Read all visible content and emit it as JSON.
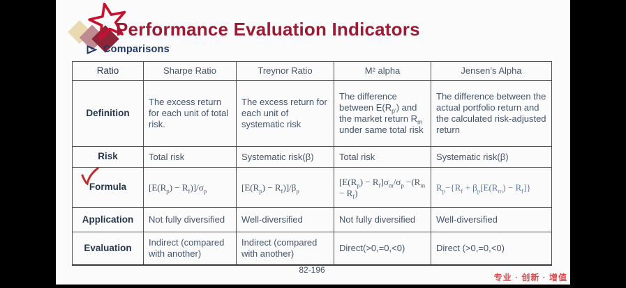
{
  "slide": {
    "title": "Performance Evaluation Indicators",
    "section_heading": "Comparisons",
    "page_number": "82-196",
    "footer_slogan": "专业 · 创新 · 增值",
    "colors": {
      "title_maroon": "#9a1b33",
      "heading_navy": "#1f3864",
      "table_text": "#44546a",
      "formula_text": "#3d4d66",
      "jensen_formula_blue": "#5d7ca6",
      "star_red": "#c8102e",
      "checkmark_red": "#c32b2b",
      "slogan_red": "#e2474b",
      "diamond_tan": "#e9dab2",
      "diamond_pink": "#c08a92",
      "diamond_maroon": "#8e2438",
      "letterbox_black": "#000000",
      "slide_background": "#fbfbfb"
    },
    "icons": {
      "star_logo": "star-outline",
      "bullet": "right-arrowhead",
      "annotation": "red-checkmark"
    }
  },
  "table": {
    "headers": [
      "Ratio",
      "Sharpe Ratio",
      "Treynor Ratio",
      "M² alpha",
      "Jensen’s Alpha"
    ],
    "rows": [
      {
        "label": "Definition",
        "cells": [
          "The excess return for each unit of total risk.",
          "The excess return for each unit of systematic risk",
          "The difference between E(R<sub>p′</sub>) and the market return R<sub>m</sub> under same total risk",
          "The difference between the actual portfolio return and the calculated risk-adjusted return"
        ]
      },
      {
        "label": "Risk",
        "cells": [
          "Total risk",
          "Systematic risk(β)",
          "Total risk",
          "Systematic risk(β)"
        ]
      },
      {
        "label": "Formula",
        "cells": [
          "[E(R<sub>p</sub>) − R<sub>f</sub>)]/σ<sub>p</sub>",
          "[E(R<sub>p</sub>) − R<sub>f</sub>)]/β<sub>p</sub>",
          "[E(R<sub>p</sub>) − R<sub>f</sub>]σ<sub>m</sub>/σ<sub>p</sub> −(R<sub>m</sub> − R<sub>f</sub>)",
          "R<sub>p</sub>−{R<sub>f</sub> + β<sub>p</sub>[E(R<sub>m</sub>) − R<sub>f</sub>]}"
        ]
      },
      {
        "label": "Application",
        "cells": [
          "Not fully diversified",
          "Well-diversified",
          "Not fully diversified",
          "Well-diversified"
        ]
      },
      {
        "label": "Evaluation",
        "cells": [
          "Indirect (compared with another)",
          "Indirect (compared with another)",
          "Direct(>0,=0,<0)",
          "Direct (>0,=0,<0)"
        ]
      }
    ]
  }
}
